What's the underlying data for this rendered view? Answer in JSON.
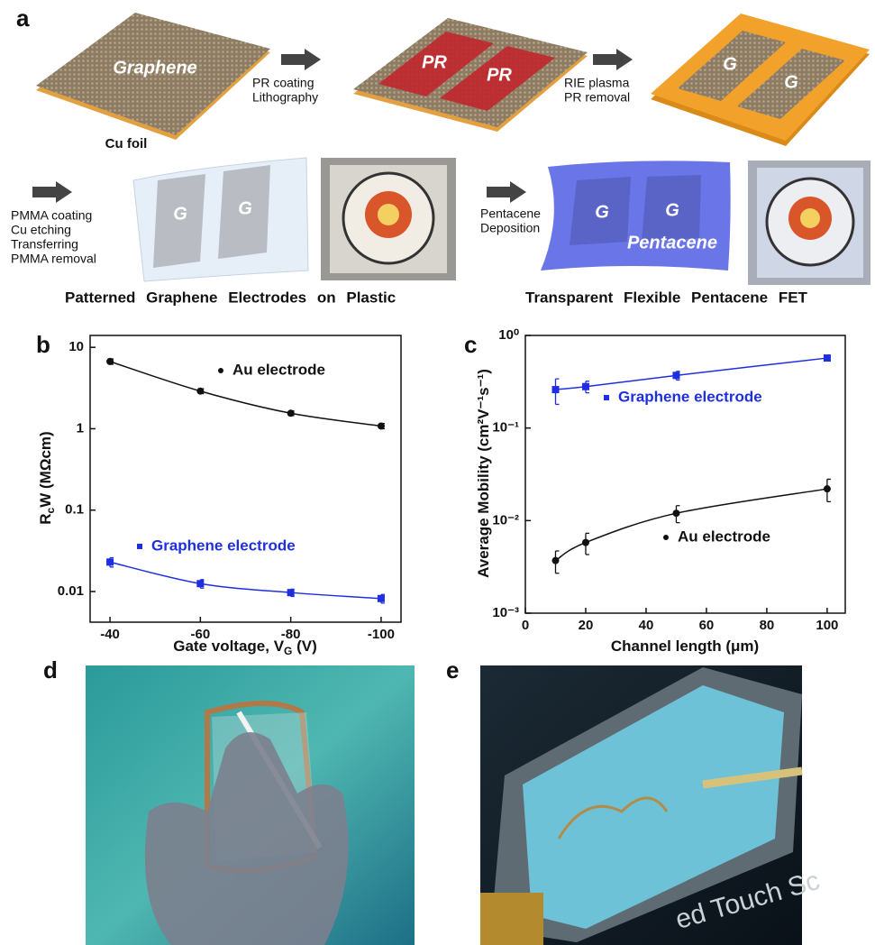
{
  "panel_a": {
    "label": "a",
    "graphene": "Graphene",
    "cu_foil": "Cu foil",
    "step1": [
      "PR coating",
      "Lithography"
    ],
    "pr": [
      "PR",
      "PR"
    ],
    "step2": [
      "RIE plasma",
      "PR removal"
    ],
    "g_top": [
      "G",
      "G"
    ],
    "step3": [
      "PMMA coating",
      "Cu etching",
      "Transferring",
      "PMMA removal"
    ],
    "g_plastic": [
      "G",
      "G"
    ],
    "step4": [
      "Pentacene",
      "Deposition"
    ],
    "g_pentacene": [
      "G",
      "G"
    ],
    "pentacene": "Pentacene",
    "caption_left": "Patterned Graphene Electrodes on Plastic",
    "caption_right": "Transparent Flexible Pentacene FET"
  },
  "chart_data": [
    {
      "label": "b",
      "type": "scatter",
      "xlabel": [
        "Gate voltage,  V",
        "G",
        " (V)"
      ],
      "ylabel": [
        "R",
        "c",
        "W (MΩcm)"
      ],
      "x": [
        -40,
        -60,
        -80,
        -100
      ],
      "xlim": [
        -35.6,
        -104.4
      ],
      "xticks": [
        -40,
        -60,
        -80,
        -100
      ],
      "ylim": [
        0.0042,
        14
      ],
      "yscale": "log",
      "yticks": [
        0.01,
        0.1,
        1,
        10
      ],
      "fit": true,
      "series": [
        {
          "name": "Au electrode",
          "color": "#111111",
          "marker": "circle",
          "values": [
            6.7,
            2.9,
            1.55,
            1.08
          ],
          "errors": [
            0.5,
            0.2,
            0.1,
            0.08
          ]
        },
        {
          "name": "Graphene electrode",
          "color": "#1f2fe0",
          "marker": "square",
          "values": [
            0.023,
            0.0125,
            0.0097,
            0.0082
          ],
          "errors": [
            0.003,
            0.0015,
            0.001,
            0.001
          ]
        }
      ]
    },
    {
      "label": "c",
      "type": "scatter",
      "xlabel": [
        "Channel length (μm)"
      ],
      "ylabel": [
        "Average  Mobility  (cm²V⁻¹s⁻¹)"
      ],
      "x": [
        10,
        20,
        50,
        100
      ],
      "xlim": [
        0,
        106
      ],
      "xticks": [
        0,
        20,
        40,
        60,
        80,
        100
      ],
      "ylim": [
        0.001,
        1
      ],
      "yscale": "log",
      "yticks": [
        {
          "value": 0.001,
          "label": "10⁻³"
        },
        {
          "value": 0.01,
          "label": "10⁻²"
        },
        {
          "value": 0.1,
          "label": "10⁻¹"
        },
        {
          "value": 1,
          "label": "10⁰"
        }
      ],
      "fit": true,
      "series": [
        {
          "name": "Au electrode",
          "color": "#111111",
          "marker": "circle",
          "values": [
            0.0037,
            0.0058,
            0.012,
            0.022
          ],
          "errors": [
            0.001,
            0.0015,
            0.0025,
            0.006
          ]
        },
        {
          "name": "Graphene electrode",
          "color": "#1f2fe0",
          "marker": "square",
          "values": [
            0.26,
            0.28,
            0.37,
            0.57
          ],
          "errors": [
            0.08,
            0.04,
            0.04,
            0.04
          ]
        }
      ]
    }
  ],
  "panel_d": {
    "label": "d"
  },
  "panel_e": {
    "label": "e",
    "screen_text": "ed Touch Sc"
  }
}
